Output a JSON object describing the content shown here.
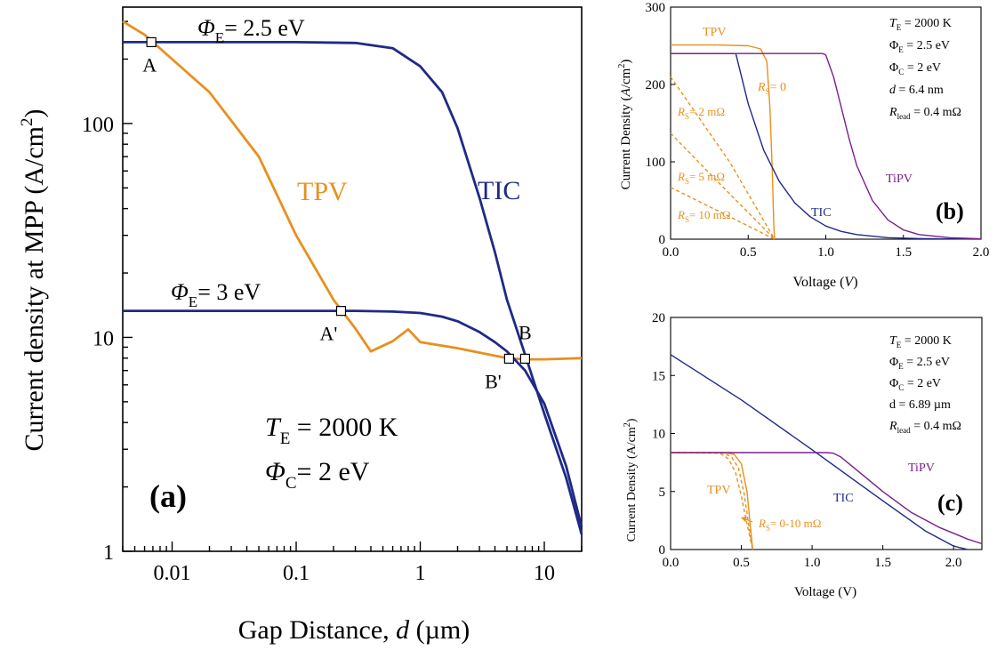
{
  "colors": {
    "tpv": "#E8901E",
    "tic": "#1F2A86",
    "tipv": "#7A1F8C",
    "axis": "#000000"
  },
  "chart_data": [
    {
      "id": "a",
      "type": "line",
      "panel_label": "(a)",
      "xscale": "log",
      "yscale": "log",
      "xlim": [
        0.004,
        20
      ],
      "ylim": [
        1,
        350
      ],
      "xticks": [
        0.01,
        0.1,
        1,
        10
      ],
      "xticklabels": [
        "0.01",
        "0.1",
        "1",
        "10"
      ],
      "yticks": [
        1,
        10,
        100
      ],
      "yticklabels": [
        "1",
        "10",
        "100"
      ],
      "xlabel_main": "Gap Distance, ",
      "xlabel_var": "d",
      "xlabel_unit": " (µm)",
      "ylabel": "Current density at MPP (A/cm",
      "ylabel_sup": "2",
      "ylabel_end": ")",
      "series": [
        {
          "name": "TPV",
          "color_key": "tpv",
          "x": [
            0.004,
            0.006,
            0.01,
            0.02,
            0.05,
            0.1,
            0.2,
            0.3,
            0.4,
            0.6,
            0.8,
            1,
            2,
            5,
            7,
            10,
            20
          ],
          "y": [
            300,
            260,
            200,
            140,
            70,
            30,
            15,
            11,
            8.6,
            9.6,
            10.9,
            9.5,
            8.9,
            8.0,
            7.9,
            7.9,
            8.0
          ]
        },
        {
          "name": "TIC",
          "color_key": "tic",
          "x": [
            0.004,
            0.1,
            0.3,
            0.6,
            1,
            1.5,
            2,
            3,
            4,
            5,
            7,
            10,
            15,
            20
          ],
          "y": [
            240,
            240,
            238,
            225,
            185,
            140,
            95,
            45,
            25,
            15,
            8.3,
            4.4,
            2.2,
            1.2
          ]
        },
        {
          "name": "TIC",
          "color_key": "tic",
          "x": [
            0.004,
            0.1,
            0.3,
            0.6,
            1,
            1.5,
            2,
            3,
            4,
            5,
            7,
            10,
            15,
            20
          ],
          "y": [
            13.3,
            13.3,
            13.3,
            13.2,
            13.0,
            12.5,
            11.9,
            10.6,
            9.5,
            8.6,
            7.0,
            4.9,
            2.5,
            1.3
          ]
        }
      ],
      "markers": [
        {
          "label": "A",
          "x": 0.0068,
          "y": 240
        },
        {
          "label": "A'",
          "x": 0.23,
          "y": 13.3
        },
        {
          "label": "B'",
          "x": 5.2,
          "y": 7.95
        },
        {
          "label": "B",
          "x": 7.0,
          "y": 7.95
        }
      ],
      "annotations": {
        "phi_e_high_sym": "Φ",
        "phi_e_high_sub": "E",
        "phi_e_high_val": "= 2.5 eV",
        "phi_e_low_sym": "Φ",
        "phi_e_low_sub": "E",
        "phi_e_low_val": "= 3 eV",
        "tpv_label": "TPV",
        "tic_label": "TIC",
        "te_sym": "T",
        "te_sub": "E",
        "te_val": " = 2000 K",
        "phi_c_sym": "Φ",
        "phi_c_sub": "C",
        "phi_c_val": "= 2 eV"
      }
    },
    {
      "id": "b",
      "type": "line",
      "panel_label": "(b)",
      "xlim": [
        0,
        2.0
      ],
      "ylim": [
        0,
        300
      ],
      "xticks": [
        0,
        0.5,
        1.0,
        1.5,
        2.0
      ],
      "xticklabels": [
        "0.0",
        "0.5",
        "1.0",
        "1.5",
        "2.0"
      ],
      "yticks": [
        0,
        100,
        200,
        300
      ],
      "yticklabels": [
        "0",
        "100",
        "200",
        "300"
      ],
      "xlabel_main": "Voltage (",
      "xlabel_var": "V",
      "xlabel_unit": ")",
      "ylabel": "Current Density (",
      "ylabel_var": "A",
      "ylabel_mid": "/cm",
      "ylabel_sup": "2",
      "ylabel_end": ")",
      "series": [
        {
          "name": "TPV",
          "color_key": "tpv",
          "style": "solid",
          "x": [
            0,
            0.3,
            0.5,
            0.58,
            0.62,
            0.64,
            0.655,
            0.665,
            0.67
          ],
          "y": [
            251,
            251,
            250,
            246,
            230,
            170,
            90,
            20,
            0
          ]
        },
        {
          "name": "R_S = 2 mΩ",
          "color_key": "tpv",
          "style": "dashed",
          "x": [
            0,
            0.38,
            0.67
          ],
          "y": [
            210,
            100,
            0
          ]
        },
        {
          "name": "R_S = 5 mΩ",
          "color_key": "tpv",
          "style": "dashed",
          "x": [
            0,
            0.3,
            0.67
          ],
          "y": [
            137,
            75,
            0
          ]
        },
        {
          "name": "R_S = 10 mΩ",
          "color_key": "tpv",
          "style": "dashed",
          "x": [
            0,
            0.3,
            0.67
          ],
          "y": [
            67,
            37,
            0
          ]
        },
        {
          "name": "TIC",
          "color_key": "tic",
          "style": "solid",
          "x": [
            0,
            0.42,
            0.5,
            0.6,
            0.7,
            0.8,
            0.9,
            1.0,
            1.1,
            1.2,
            1.4,
            1.6,
            1.8,
            2.0
          ],
          "y": [
            240,
            240,
            175,
            115,
            75,
            47,
            29,
            17,
            10,
            6,
            2,
            0.8,
            0.3,
            0.1
          ]
        },
        {
          "name": "TiPV",
          "color_key": "tipv",
          "style": "solid",
          "x": [
            0,
            0.98,
            1.0,
            1.05,
            1.1,
            1.15,
            1.2,
            1.3,
            1.4,
            1.5,
            1.6,
            1.8,
            2.0
          ],
          "y": [
            240,
            240,
            238,
            210,
            170,
            130,
            95,
            50,
            25,
            12,
            6,
            2,
            0.5
          ]
        }
      ],
      "labels": {
        "tpv": "TPV",
        "tic": "TIC",
        "tipv": "TiPV",
        "rs0_sym": "R",
        "rs0_sub": "S",
        "rs0_val": "= 0",
        "rs2_sym": "R",
        "rs2_sub": "S",
        "rs2_val": "= 2 mΩ",
        "rs5_sym": "R",
        "rs5_sub": "S",
        "rs5_val": "= 5 mΩ",
        "rs10_sym": "R",
        "rs10_sub": "S",
        "rs10_val": "= 10 mΩ"
      },
      "params": [
        {
          "sym": "T",
          "sub": "E",
          "val": " = 2000 K",
          "italic": true
        },
        {
          "sym": "Φ",
          "sub": "E",
          "val": " = 2.5 eV",
          "italic": false
        },
        {
          "sym": "Φ",
          "sub": "C",
          "val": " = 2 eV",
          "italic": false
        },
        {
          "sym": "d",
          "sub": "",
          "val": " = 6.4 nm",
          "italic": true
        },
        {
          "sym": "R",
          "sub": "lead",
          "val": " = 0.4 mΩ",
          "italic": true
        }
      ]
    },
    {
      "id": "c",
      "type": "line",
      "panel_label": "(c)",
      "xlim": [
        0,
        2.2
      ],
      "ylim": [
        0,
        20
      ],
      "xticks": [
        0,
        0.5,
        1.0,
        1.5,
        2.0
      ],
      "xticklabels": [
        "0.0",
        "0.5",
        "1.0",
        "1.5",
        "2.0"
      ],
      "yticks": [
        0,
        5,
        10,
        15,
        20
      ],
      "yticklabels": [
        "0",
        "5",
        "10",
        "15",
        "20"
      ],
      "xlabel_main": "Voltage (V)",
      "ylabel": "Current Density (A/cm",
      "ylabel_sup": "2",
      "ylabel_end": ")",
      "series": [
        {
          "name": "TPV",
          "color_key": "tpv",
          "style": "solid",
          "x": [
            0,
            0.38,
            0.45,
            0.5,
            0.54,
            0.56,
            0.58
          ],
          "y": [
            8.35,
            8.35,
            8.2,
            7.4,
            5.0,
            2.5,
            0
          ]
        },
        {
          "name": "TPV",
          "color_key": "tpv",
          "style": "dashed",
          "x": [
            0,
            0.36,
            0.43,
            0.48,
            0.52,
            0.55,
            0.58
          ],
          "y": [
            8.35,
            8.35,
            8.0,
            7.0,
            4.8,
            2.3,
            0
          ]
        },
        {
          "name": "TPV",
          "color_key": "tpv",
          "style": "dashed",
          "x": [
            0,
            0.35,
            0.41,
            0.46,
            0.5,
            0.54,
            0.58
          ],
          "y": [
            8.35,
            8.3,
            7.8,
            6.6,
            4.6,
            2.2,
            0
          ]
        },
        {
          "name": "TIC",
          "color_key": "tic",
          "style": "solid",
          "x": [
            0,
            0.5,
            1.0,
            1.5,
            1.8,
            2.0,
            2.1
          ],
          "y": [
            16.8,
            12.9,
            8.6,
            4.2,
            1.6,
            0.3,
            0
          ]
        },
        {
          "name": "TiPV",
          "color_key": "tipv",
          "style": "solid",
          "x": [
            0,
            1.1,
            1.15,
            1.2,
            1.3,
            1.5,
            1.7,
            1.9,
            2.1,
            2.2
          ],
          "y": [
            8.35,
            8.35,
            8.3,
            8.0,
            7.0,
            5.0,
            3.2,
            1.9,
            0.9,
            0.5
          ]
        }
      ],
      "labels": {
        "tpv": "TPV",
        "tic": "TIC",
        "tipv": "TiPV",
        "rs_sym": "R",
        "rs_sub": "S",
        "rs_val": "= 0-10 mΩ"
      },
      "params": [
        {
          "sym": "T",
          "sub": "E",
          "val": " = 2000 K",
          "italic": true
        },
        {
          "sym": "Φ",
          "sub": "E",
          "val": " = 2.5 eV",
          "italic": false
        },
        {
          "sym": "Φ",
          "sub": "C",
          "val": " = 2 eV",
          "italic": false
        },
        {
          "sym": "d",
          "sub": "",
          "val": " = 6.89 µm",
          "italic": false
        },
        {
          "sym": "R",
          "sub": "lead",
          "val": " = 0.4 mΩ",
          "italic": true
        }
      ]
    }
  ]
}
